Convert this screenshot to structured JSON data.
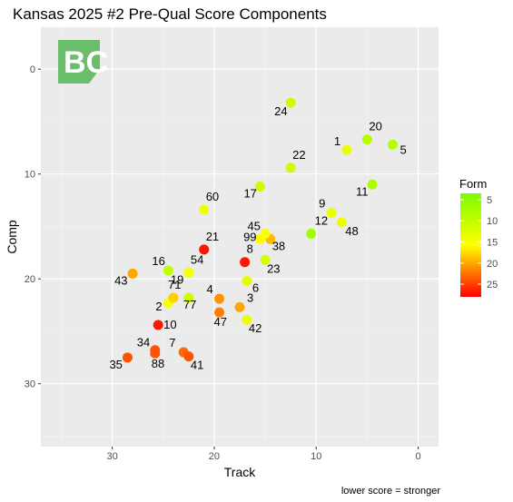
{
  "chart_data": {
    "type": "scatter",
    "title": "Kansas 2025 #2 Pre-Qual Score Components",
    "xlabel": "Track",
    "ylabel": "Comp",
    "caption": "lower score = stronger",
    "xlim": [
      37,
      -2
    ],
    "ylim": [
      -4,
      36
    ],
    "x_reversed": true,
    "y_reversed": true,
    "x_ticks": [
      30,
      20,
      10,
      0
    ],
    "y_ticks": [
      0,
      10,
      20,
      30
    ],
    "grid": true,
    "legend": {
      "title": "Form",
      "position": "right",
      "ticks": [
        5,
        10,
        15,
        20,
        25
      ],
      "range": [
        3.5,
        28
      ],
      "colors": [
        "#7cfc00",
        "#ffff00",
        "#ff0000"
      ]
    },
    "logo": "BC",
    "points": [
      {
        "label": "1",
        "x": 7.0,
        "y": 7.7,
        "form": 14
      },
      {
        "label": "2",
        "x": 24.5,
        "y": 22.3,
        "form": 15
      },
      {
        "label": "3",
        "x": 17.5,
        "y": 22.7,
        "form": 20
      },
      {
        "label": "4",
        "x": 19.5,
        "y": 21.9,
        "form": 21
      },
      {
        "label": "5",
        "x": 2.5,
        "y": 7.2,
        "form": 9
      },
      {
        "label": "6",
        "x": 16.8,
        "y": 20.2,
        "form": 13
      },
      {
        "label": "7",
        "x": 23.0,
        "y": 27.0,
        "form": 23
      },
      {
        "label": "8",
        "x": 17.0,
        "y": 18.4,
        "form": 27
      },
      {
        "label": "9",
        "x": 8.5,
        "y": 13.7,
        "form": 14
      },
      {
        "label": "10",
        "x": 25.5,
        "y": 24.4,
        "form": 27
      },
      {
        "label": "11",
        "x": 4.5,
        "y": 11.0,
        "form": 8
      },
      {
        "label": "12",
        "x": 10.5,
        "y": 15.7,
        "form": 7
      },
      {
        "label": "16",
        "x": 24.5,
        "y": 19.2,
        "form": 10
      },
      {
        "label": "17",
        "x": 15.5,
        "y": 11.2,
        "form": 11
      },
      {
        "label": "19",
        "x": 22.5,
        "y": 19.4,
        "form": 15
      },
      {
        "label": "20",
        "x": 5.0,
        "y": 6.7,
        "form": 9
      },
      {
        "label": "21",
        "x": 21.0,
        "y": 17.2,
        "form": 27
      },
      {
        "label": "22",
        "x": 12.5,
        "y": 9.4,
        "form": 11
      },
      {
        "label": "23",
        "x": 15.0,
        "y": 18.2,
        "form": 12
      },
      {
        "label": "24",
        "x": 12.5,
        "y": 3.2,
        "form": 11
      },
      {
        "label": "34",
        "x": 25.8,
        "y": 26.8,
        "form": 24
      },
      {
        "label": "35",
        "x": 28.5,
        "y": 27.5,
        "form": 24
      },
      {
        "label": "38",
        "x": 14.5,
        "y": 16.2,
        "form": 19
      },
      {
        "label": "41",
        "x": 22.5,
        "y": 27.4,
        "form": 24
      },
      {
        "label": "42",
        "x": 16.8,
        "y": 23.9,
        "form": 14
      },
      {
        "label": "43",
        "x": 28.0,
        "y": 19.5,
        "form": 20
      },
      {
        "label": "45",
        "x": 15.5,
        "y": 16.2,
        "form": 16
      },
      {
        "label": "47",
        "x": 19.5,
        "y": 23.2,
        "form": 22
      },
      {
        "label": "48",
        "x": 7.5,
        "y": 14.6,
        "form": 14
      },
      {
        "label": "54",
        "x": 22.5,
        "y": 19.4,
        "form": 15
      },
      {
        "label": "60",
        "x": 21.0,
        "y": 13.4,
        "form": 14
      },
      {
        "label": "71",
        "x": 24.0,
        "y": 21.8,
        "form": 18
      },
      {
        "label": "77",
        "x": 22.5,
        "y": 21.8,
        "form": 11
      },
      {
        "label": "88",
        "x": 25.8,
        "y": 27.1,
        "form": 24
      },
      {
        "label": "99",
        "x": 15.0,
        "y": 15.7,
        "form": 15
      }
    ]
  }
}
